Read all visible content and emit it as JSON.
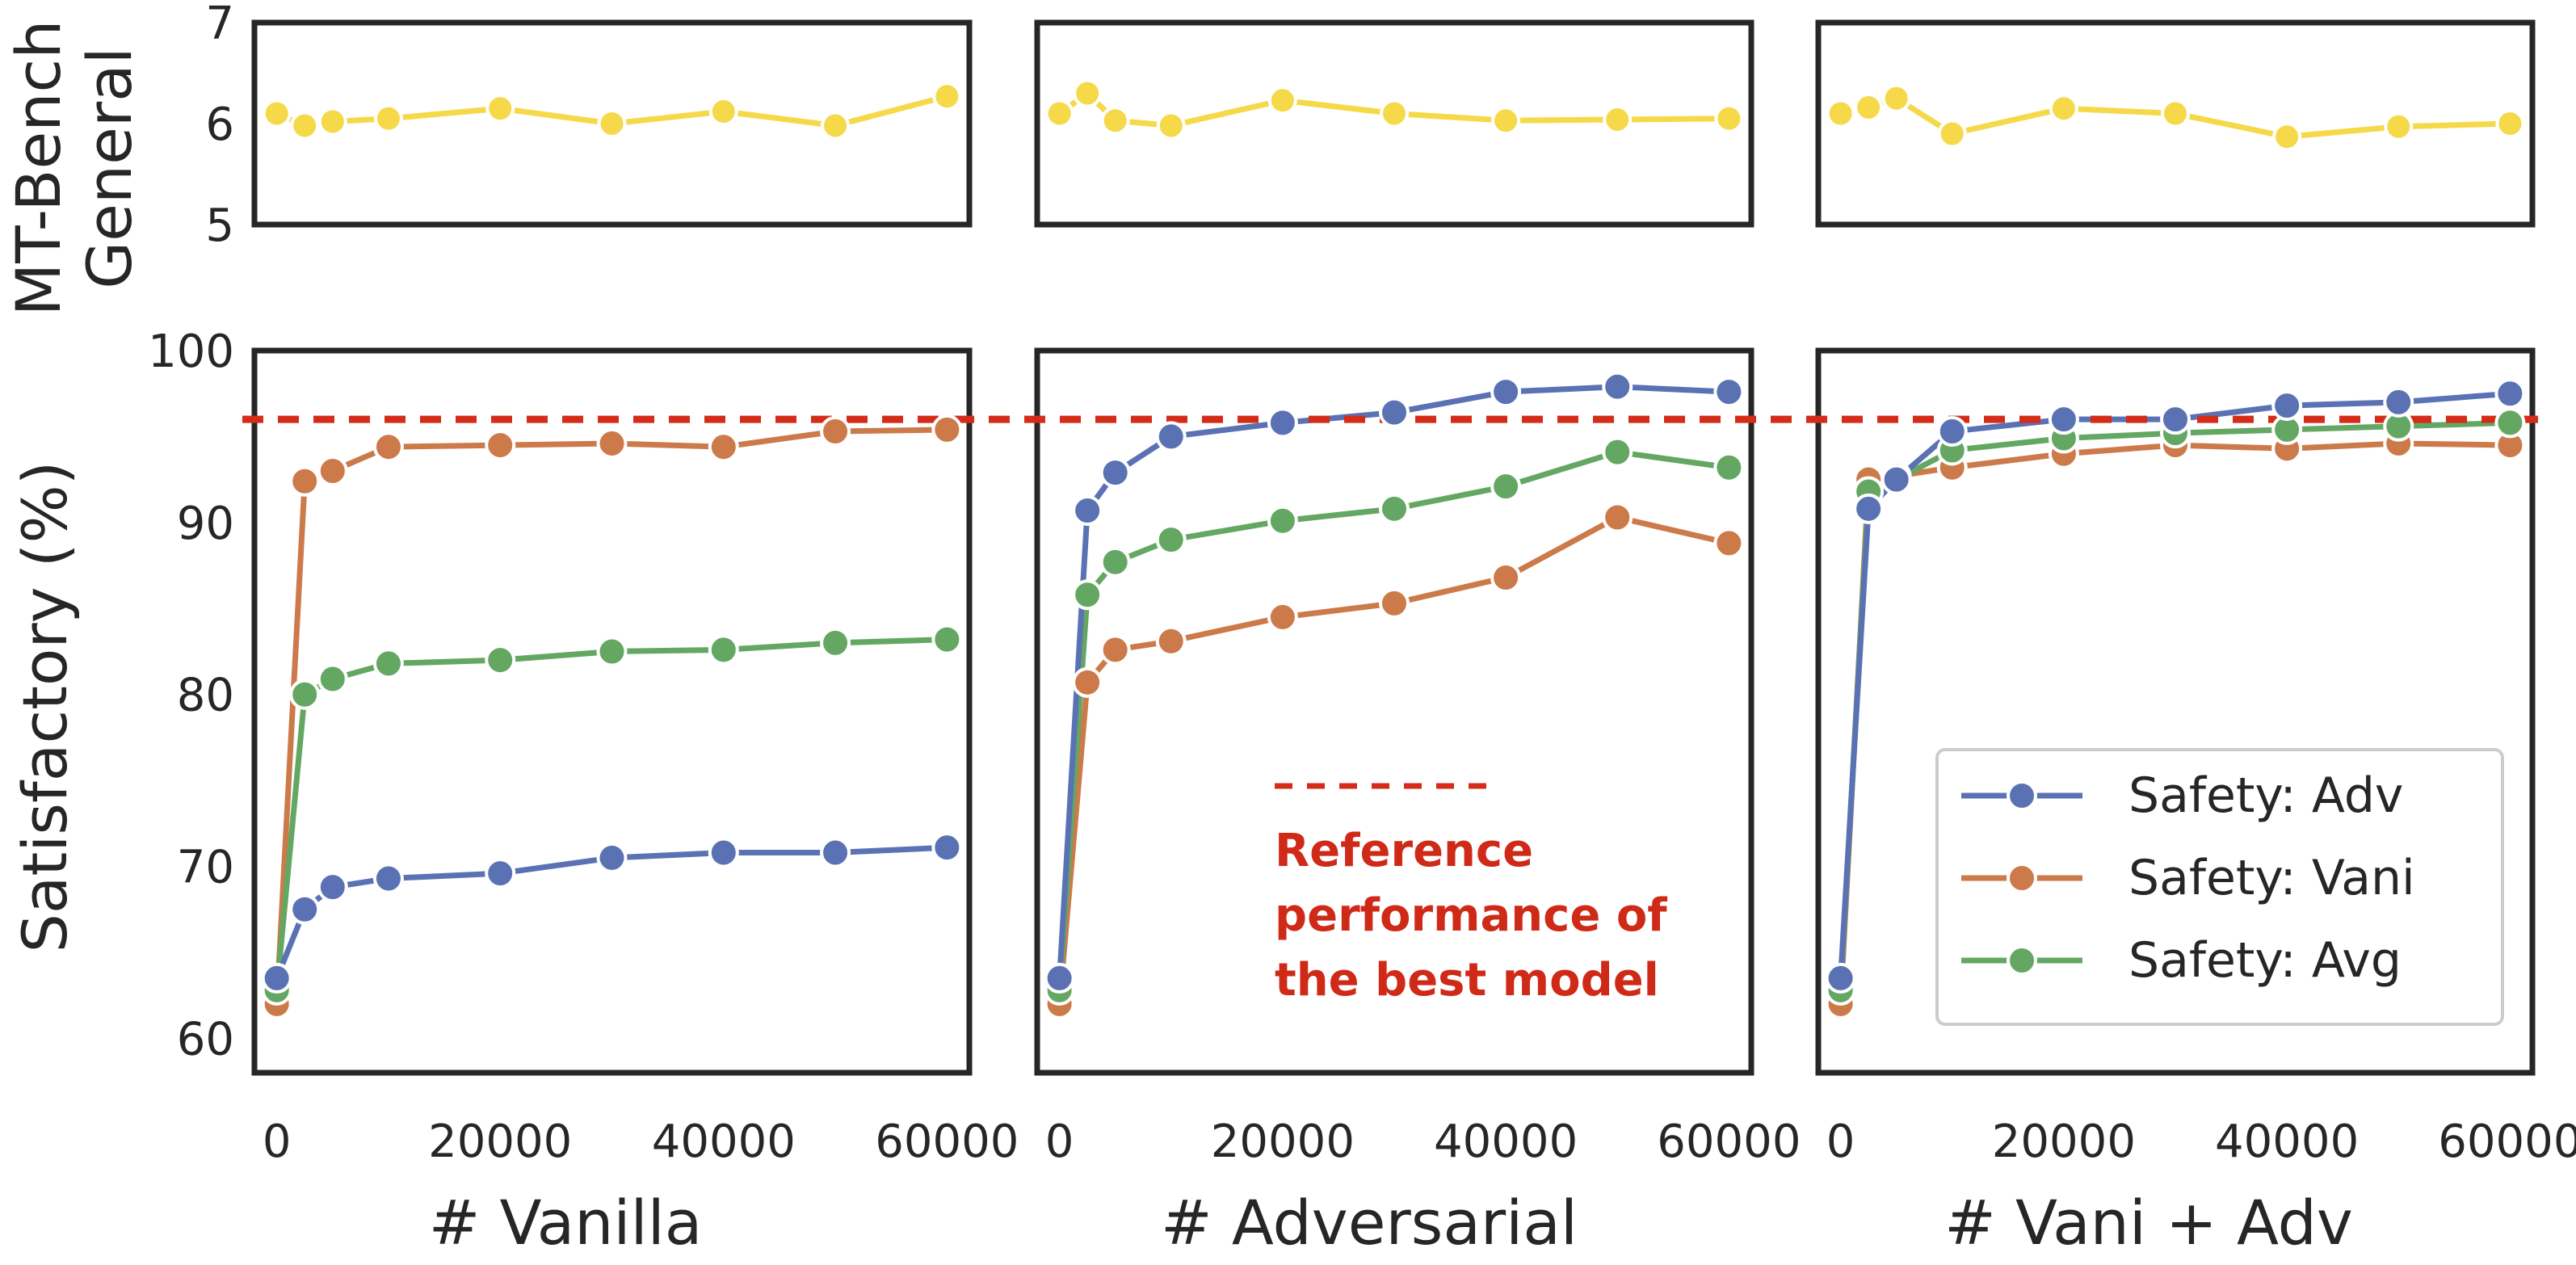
{
  "chart_data": {
    "type": "line",
    "reference": {
      "value": 96,
      "color": "#d42c18",
      "label_lines": [
        "Reference",
        "performance of",
        "the best model"
      ]
    },
    "top_ylabel_lines": [
      "MT-Bench",
      "General"
    ],
    "top_ylim": [
      5,
      7
    ],
    "top_yticks": [
      "5",
      "6",
      "7"
    ],
    "bottom_ylabel": "Satisfactory (%)",
    "bottom_ylim": [
      58,
      100
    ],
    "bottom_yticks": [
      "60",
      "70",
      "80",
      "90",
      "100"
    ],
    "xlim": [
      -2000,
      62000
    ],
    "xticks": [
      0,
      20000,
      40000,
      60000
    ],
    "xtick_labels": [
      "0",
      "20000",
      "40000",
      "60000"
    ],
    "colors": {
      "mt_bench": "#f5d949",
      "adv": "#5a72b4",
      "vani": "#cc7a4a",
      "avg": "#64a763"
    },
    "legend": {
      "position": "lower-right",
      "entries": [
        "Safety: Adv",
        "Safety: Vani",
        "Safety: Avg"
      ]
    },
    "panels": [
      {
        "xlabel": "# Vanilla",
        "x": [
          0,
          2500,
          5000,
          10000,
          20000,
          30000,
          40000,
          50000,
          60000
        ],
        "mt_bench": [
          6.1,
          5.98,
          6.02,
          6.05,
          6.15,
          6.0,
          6.12,
          5.98,
          6.27
        ],
        "series": [
          {
            "name": "Safety: Adv",
            "key": "adv",
            "values": [
              63.5,
              67.5,
              68.8,
              69.3,
              69.6,
              70.5,
              70.8,
              70.8,
              71.1
            ]
          },
          {
            "name": "Safety: Vani",
            "key": "vani",
            "values": [
              62.0,
              92.4,
              93.0,
              94.4,
              94.5,
              94.6,
              94.4,
              95.3,
              95.4
            ]
          },
          {
            "name": "Safety: Avg",
            "key": "avg",
            "values": [
              62.8,
              80.0,
              80.9,
              81.8,
              82.0,
              82.5,
              82.6,
              83.0,
              83.2
            ]
          }
        ]
      },
      {
        "xlabel": "# Adversarial",
        "x": [
          0,
          2500,
          5000,
          10000,
          20000,
          30000,
          40000,
          50000,
          60000
        ],
        "mt_bench": [
          6.1,
          6.3,
          6.03,
          5.98,
          6.23,
          6.1,
          6.03,
          6.04,
          6.05
        ],
        "series": [
          {
            "name": "Safety: Adv",
            "key": "adv",
            "values": [
              63.5,
              90.7,
              92.9,
              95.0,
              95.8,
              96.4,
              97.6,
              97.9,
              97.6
            ]
          },
          {
            "name": "Safety: Vani",
            "key": "vani",
            "values": [
              62.0,
              80.7,
              82.6,
              83.1,
              84.5,
              85.3,
              86.8,
              90.3,
              88.8
            ]
          },
          {
            "name": "Safety: Avg",
            "key": "avg",
            "values": [
              62.8,
              85.8,
              87.7,
              89.0,
              90.1,
              90.8,
              92.1,
              94.1,
              93.2
            ]
          }
        ]
      },
      {
        "xlabel": "# Vani + Adv",
        "x": [
          0,
          2500,
          5000,
          10000,
          20000,
          30000,
          40000,
          50000,
          60000
        ],
        "mt_bench": [
          6.1,
          6.16,
          6.25,
          5.9,
          6.15,
          6.1,
          5.87,
          5.97,
          6.0
        ],
        "series": [
          {
            "name": "Safety: Adv",
            "key": "adv",
            "values": [
              63.5,
              90.8,
              92.5,
              95.3,
              96.0,
              96.0,
              96.8,
              97.0,
              97.5
            ]
          },
          {
            "name": "Safety: Vani",
            "key": "vani",
            "values": [
              62.0,
              92.5,
              92.7,
              93.2,
              94.0,
              94.5,
              94.3,
              94.6,
              94.5
            ]
          },
          {
            "name": "Safety: Avg",
            "key": "avg",
            "values": [
              62.8,
              91.8,
              92.5,
              94.2,
              94.9,
              95.2,
              95.4,
              95.6,
              95.8
            ]
          }
        ]
      }
    ]
  }
}
